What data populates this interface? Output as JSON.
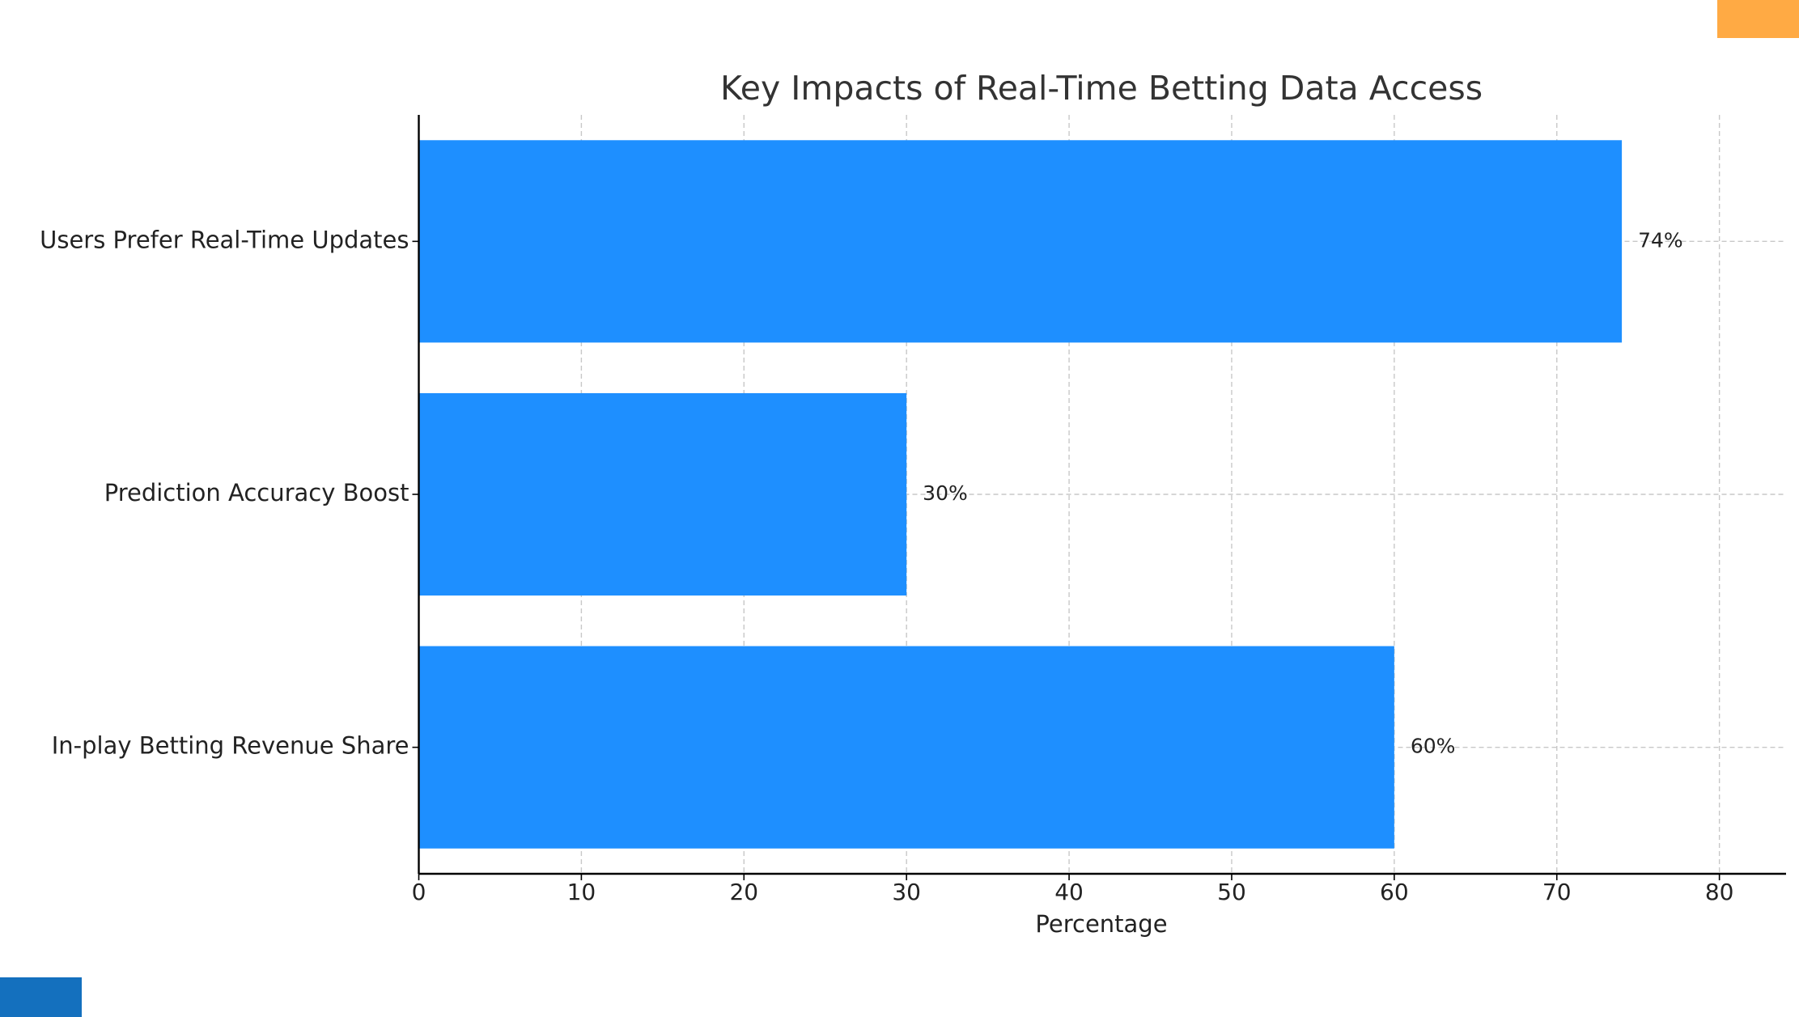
{
  "chart_data": {
    "type": "bar",
    "orientation": "horizontal",
    "title": "Key Impacts of Real-Time Betting Data Access",
    "x_label": "Percentage",
    "categories": [
      "Users Prefer Real-Time Updates",
      "Prediction Accuracy Boost",
      "In-play Betting Revenue Share"
    ],
    "values": [
      74,
      30,
      60
    ],
    "value_labels": [
      "74%",
      "30%",
      "60%"
    ],
    "color": "#1e8fff",
    "xlim": [
      0,
      84.1
    ],
    "xticks": [
      0,
      10,
      20,
      30,
      40,
      50,
      60,
      70,
      80
    ],
    "grid": true
  }
}
